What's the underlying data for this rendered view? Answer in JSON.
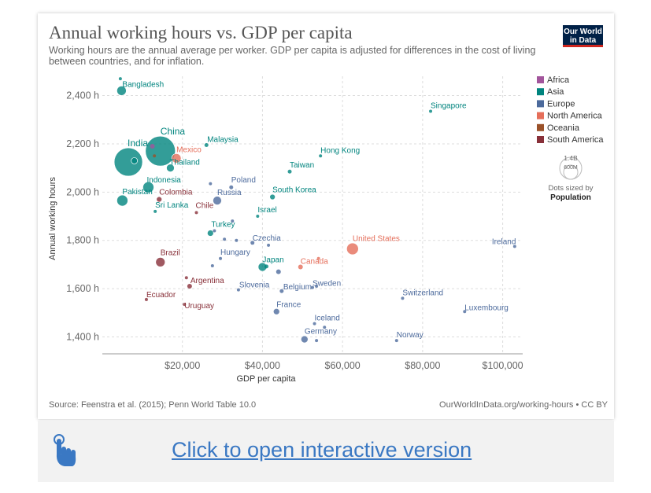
{
  "header": {
    "title": "Annual working hours vs. GDP per capita",
    "subtitle": "Working hours are the annual average per worker. GDP per capita is adjusted for differences in the cost of living between countries, and for inflation.",
    "logo": "Our World in Data"
  },
  "footer": {
    "source": "Source: Feenstra et al. (2015); Penn World Table 10.0",
    "link": "OurWorldInData.org/working-hours • CC BY"
  },
  "cta": {
    "label": "Click to open interactive version"
  },
  "size_legend": {
    "value_top": "1.4B",
    "value_bottom": "600M",
    "caption": "Dots sized by",
    "caption_bold": "Population"
  },
  "chart_data": {
    "type": "scatter",
    "xlabel": "GDP per capita",
    "ylabel": "Annual working hours",
    "xlim": [
      0,
      105000
    ],
    "ylim": [
      1330,
      2480
    ],
    "x_ticks": [
      20000,
      40000,
      60000,
      80000,
      100000
    ],
    "x_tick_labels": [
      "$20,000",
      "$40,000",
      "$60,000",
      "$80,000",
      "$100,000"
    ],
    "y_ticks": [
      1400,
      1600,
      1800,
      2000,
      2200,
      2400
    ],
    "y_tick_labels": [
      "1,400 h",
      "1,600 h",
      "1,800 h",
      "2,000 h",
      "2,200 h",
      "2,400 h"
    ],
    "grid": true,
    "legend_position": "right",
    "regions": [
      {
        "name": "Africa",
        "color": "#a2559c"
      },
      {
        "name": "Asia",
        "color": "#00847e"
      },
      {
        "name": "Europe",
        "color": "#4c6a9c"
      },
      {
        "name": "North America",
        "color": "#e56e5a"
      },
      {
        "name": "Oceania",
        "color": "#9a5129"
      },
      {
        "name": "South America",
        "color": "#883039"
      }
    ],
    "points": [
      {
        "label": "Bangladesh",
        "x": 4800,
        "y": 2420,
        "region": "Asia",
        "r": 6,
        "lx": 1,
        "ly": -5
      },
      {
        "label": "",
        "x": 4500,
        "y": 2470,
        "region": "Asia",
        "r": 2
      },
      {
        "label": "China",
        "x": 14500,
        "y": 2170,
        "region": "Asia",
        "r": 19,
        "lx": 0,
        "ly": -21
      },
      {
        "label": "India",
        "x": 6500,
        "y": 2125,
        "region": "Asia",
        "r": 18,
        "lx": -1,
        "ly": -20
      },
      {
        "label": "",
        "x": 8000,
        "y": 2130,
        "region": "Asia",
        "r": 4
      },
      {
        "label": "",
        "x": 12500,
        "y": 2190,
        "region": "Africa",
        "r": 3
      },
      {
        "label": "",
        "x": 13000,
        "y": 2150,
        "region": "Oceania",
        "r": 2
      },
      {
        "label": "Malaysia",
        "x": 26000,
        "y": 2195,
        "region": "Asia",
        "r": 2.5,
        "lx": 1,
        "ly": -4
      },
      {
        "label": "Mexico",
        "x": 18500,
        "y": 2140,
        "region": "North America",
        "r": 6,
        "lx": 0,
        "ly": -8
      },
      {
        "label": "Thailand",
        "x": 17000,
        "y": 2100,
        "region": "Asia",
        "r": 5,
        "lx": -1,
        "ly": -4
      },
      {
        "label": "Indonesia",
        "x": 11500,
        "y": 2020,
        "region": "Asia",
        "r": 7,
        "lx": -2,
        "ly": -6
      },
      {
        "label": "Pakistan",
        "x": 5000,
        "y": 1965,
        "region": "Asia",
        "r": 7,
        "lx": 0,
        "ly": -8
      },
      {
        "label": "Colombia",
        "x": 14200,
        "y": 1970,
        "region": "South America",
        "r": 3.5,
        "lx": 0,
        "ly": -6
      },
      {
        "label": "Sri Lanka",
        "x": 13200,
        "y": 1920,
        "region": "Asia",
        "r": 2,
        "lx": 0,
        "ly": -5
      },
      {
        "label": "Chile",
        "x": 23500,
        "y": 1915,
        "region": "South America",
        "r": 2,
        "lx": -1,
        "ly": -6
      },
      {
        "label": "Poland",
        "x": 32200,
        "y": 2020,
        "region": "Europe",
        "r": 2.5,
        "lx": 0,
        "ly": -6
      },
      {
        "label": "",
        "x": 27000,
        "y": 2035,
        "region": "Europe",
        "r": 2
      },
      {
        "label": "Russia",
        "x": 28700,
        "y": 1965,
        "region": "Europe",
        "r": 5.5,
        "lx": 0,
        "ly": -7
      },
      {
        "label": "South Korea",
        "x": 42500,
        "y": 1980,
        "region": "Asia",
        "r": 3.5,
        "lx": 0,
        "ly": -6
      },
      {
        "label": "Israel",
        "x": 38800,
        "y": 1900,
        "region": "Asia",
        "r": 2,
        "lx": 0,
        "ly": -5
      },
      {
        "label": "Taiwan",
        "x": 46800,
        "y": 2085,
        "region": "Asia",
        "r": 2.5,
        "lx": 0,
        "ly": -5
      },
      {
        "label": "Hong Kong",
        "x": 54500,
        "y": 2150,
        "region": "Asia",
        "r": 2,
        "lx": 0,
        "ly": -4
      },
      {
        "label": "Singapore",
        "x": 82000,
        "y": 2335,
        "region": "Asia",
        "r": 2,
        "lx": 0,
        "ly": -4
      },
      {
        "label": "Turkey",
        "x": 27000,
        "y": 1830,
        "region": "Asia",
        "r": 4,
        "lx": 1,
        "ly": -8
      },
      {
        "label": "",
        "x": 28000,
        "y": 1840,
        "region": "Europe",
        "r": 2
      },
      {
        "label": "",
        "x": 30500,
        "y": 1805,
        "region": "Europe",
        "r": 2
      },
      {
        "label": "",
        "x": 32500,
        "y": 1880,
        "region": "Europe",
        "r": 2
      },
      {
        "label": "",
        "x": 33500,
        "y": 1800,
        "region": "Europe",
        "r": 2
      },
      {
        "label": "Czechia",
        "x": 37500,
        "y": 1790,
        "region": "Europe",
        "r": 2.5,
        "lx": 0,
        "ly": -3
      },
      {
        "label": "",
        "x": 41500,
        "y": 1780,
        "region": "Europe",
        "r": 2
      },
      {
        "label": "Hungary",
        "x": 29500,
        "y": 1725,
        "region": "Europe",
        "r": 2,
        "lx": 0,
        "ly": -5
      },
      {
        "label": "",
        "x": 27500,
        "y": 1695,
        "region": "Europe",
        "r": 2
      },
      {
        "label": "Brazil",
        "x": 14500,
        "y": 1710,
        "region": "South America",
        "r": 6,
        "lx": 0,
        "ly": -9
      },
      {
        "label": "Japan",
        "x": 40000,
        "y": 1690,
        "region": "Asia",
        "r": 5.5,
        "lx": 0,
        "ly": -6
      },
      {
        "label": "",
        "x": 41000,
        "y": 1692,
        "region": "Asia",
        "r": 2.5
      },
      {
        "label": "",
        "x": 44000,
        "y": 1670,
        "region": "Europe",
        "r": 3
      },
      {
        "label": "Canada",
        "x": 49500,
        "y": 1690,
        "region": "North America",
        "r": 3,
        "lx": 0,
        "ly": -4
      },
      {
        "label": "",
        "x": 54000,
        "y": 1725,
        "region": "North America",
        "r": 2
      },
      {
        "label": "United States",
        "x": 62500,
        "y": 1765,
        "region": "North America",
        "r": 7.5,
        "lx": 0,
        "ly": -10
      },
      {
        "label": "Ireland",
        "x": 103000,
        "y": 1775,
        "region": "Europe",
        "r": 2,
        "lx": -29,
        "ly": -3
      },
      {
        "label": "Argentina",
        "x": 21800,
        "y": 1610,
        "region": "South America",
        "r": 3,
        "lx": 1,
        "ly": -4
      },
      {
        "label": "",
        "x": 21000,
        "y": 1645,
        "region": "South America",
        "r": 2
      },
      {
        "label": "Slovenia",
        "x": 34000,
        "y": 1595,
        "region": "Europe",
        "r": 2,
        "lx": 1,
        "ly": -3
      },
      {
        "label": "Belgium",
        "x": 44800,
        "y": 1590,
        "region": "Europe",
        "r": 2.5,
        "lx": 2,
        "ly": -2
      },
      {
        "label": "Sweden",
        "x": 52500,
        "y": 1605,
        "region": "Europe",
        "r": 2,
        "lx": 0,
        "ly": -2
      },
      {
        "label": "",
        "x": 53500,
        "y": 1610,
        "region": "Europe",
        "r": 2
      },
      {
        "label": "Switzerland",
        "x": 75000,
        "y": 1560,
        "region": "Europe",
        "r": 2,
        "lx": 0,
        "ly": -4
      },
      {
        "label": "Luxembourg",
        "x": 90500,
        "y": 1505,
        "region": "Europe",
        "r": 2,
        "lx": 0,
        "ly": -2
      },
      {
        "label": "Ecuador",
        "x": 11000,
        "y": 1555,
        "region": "South America",
        "r": 2,
        "lx": 0,
        "ly": -3
      },
      {
        "label": "Uruguay",
        "x": 20500,
        "y": 1535,
        "region": "South America",
        "r": 2,
        "lx": 0,
        "ly": 5
      },
      {
        "label": "France",
        "x": 43500,
        "y": 1505,
        "region": "Europe",
        "r": 4,
        "lx": 0,
        "ly": -6
      },
      {
        "label": "Iceland",
        "x": 53000,
        "y": 1455,
        "region": "Europe",
        "r": 2,
        "lx": 0,
        "ly": -4
      },
      {
        "label": "",
        "x": 55500,
        "y": 1440,
        "region": "Europe",
        "r": 2
      },
      {
        "label": "Germany",
        "x": 50500,
        "y": 1390,
        "region": "Europe",
        "r": 4.5,
        "lx": 0,
        "ly": -7
      },
      {
        "label": "",
        "x": 53500,
        "y": 1385,
        "region": "Europe",
        "r": 2
      },
      {
        "label": "Norway",
        "x": 73500,
        "y": 1385,
        "region": "Europe",
        "r": 2,
        "lx": 0,
        "ly": -4
      }
    ]
  }
}
